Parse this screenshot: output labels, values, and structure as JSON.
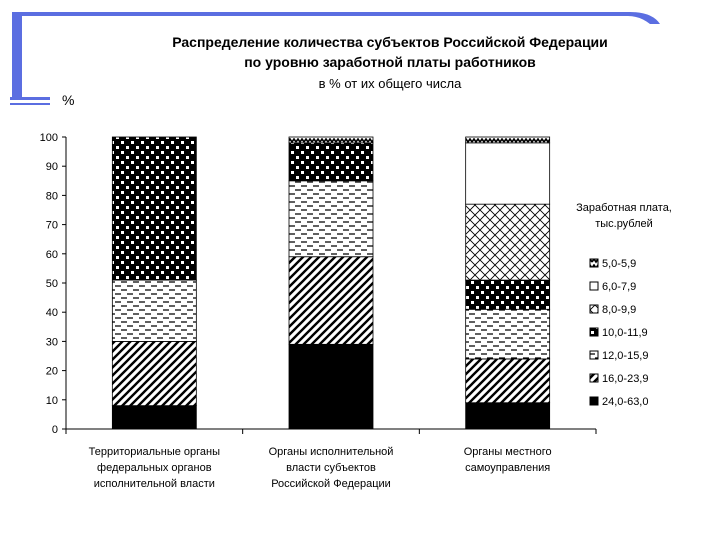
{
  "chart_data": {
    "type": "bar",
    "stacked": true,
    "title": "Распределение количества субъектов Российской Федерации",
    "title_line2": "по уровню заработной платы работников",
    "subtitle": "в % от их общего числа",
    "ylabel": "%",
    "ylim": [
      0,
      100
    ],
    "yticks": [
      "0",
      "10",
      "20",
      "30",
      "40",
      "50",
      "60",
      "70",
      "80",
      "90",
      "100"
    ],
    "grid": false,
    "legend_placement": "right",
    "legend_title": [
      "Заработная плата,",
      "тыс.рублей"
    ],
    "categories": [
      [
        "Территориальные органы",
        "федеральных органов",
        "исполнительной власти"
      ],
      [
        "Органы исполнительной",
        "власти субъектов",
        "Российской Федерации"
      ],
      [
        "Органы местного",
        "самоуправления"
      ]
    ],
    "series": [
      {
        "name": "24,0-63,0",
        "values": [
          8,
          29,
          9
        ]
      },
      {
        "name": "16,0-23,9",
        "values": [
          22,
          30,
          15
        ]
      },
      {
        "name": "12,0-15,9",
        "values": [
          21,
          26,
          17
        ]
      },
      {
        "name": "10,0-11,9",
        "values": [
          49,
          13,
          10
        ]
      },
      {
        "name": "8,0-9,9",
        "values": [
          0,
          0,
          26
        ]
      },
      {
        "name": "6,0-7,9",
        "values": [
          0,
          0,
          21
        ]
      },
      {
        "name": "5,0-5,9",
        "values": [
          0,
          2,
          2
        ]
      }
    ],
    "legend_order": [
      "5,0-5,9",
      "6,0-7,9",
      "8,0-9,9",
      "10,0-11,9",
      "12,0-15,9",
      "16,0-23,9",
      "24,0-63,0"
    ],
    "series_patterns": {
      "24,0-63,0": "solid-black",
      "16,0-23,9": "diagonal-hatch",
      "12,0-15,9": "dashes",
      "10,0-11,9": "checker",
      "8,0-9,9": "crosshatch",
      "6,0-7,9": "white",
      "5,0-5,9": "zigzag"
    },
    "colors": {
      "background": "#ffffff",
      "accent_bar": "#5b6ee1",
      "ink": "#000000"
    }
  }
}
